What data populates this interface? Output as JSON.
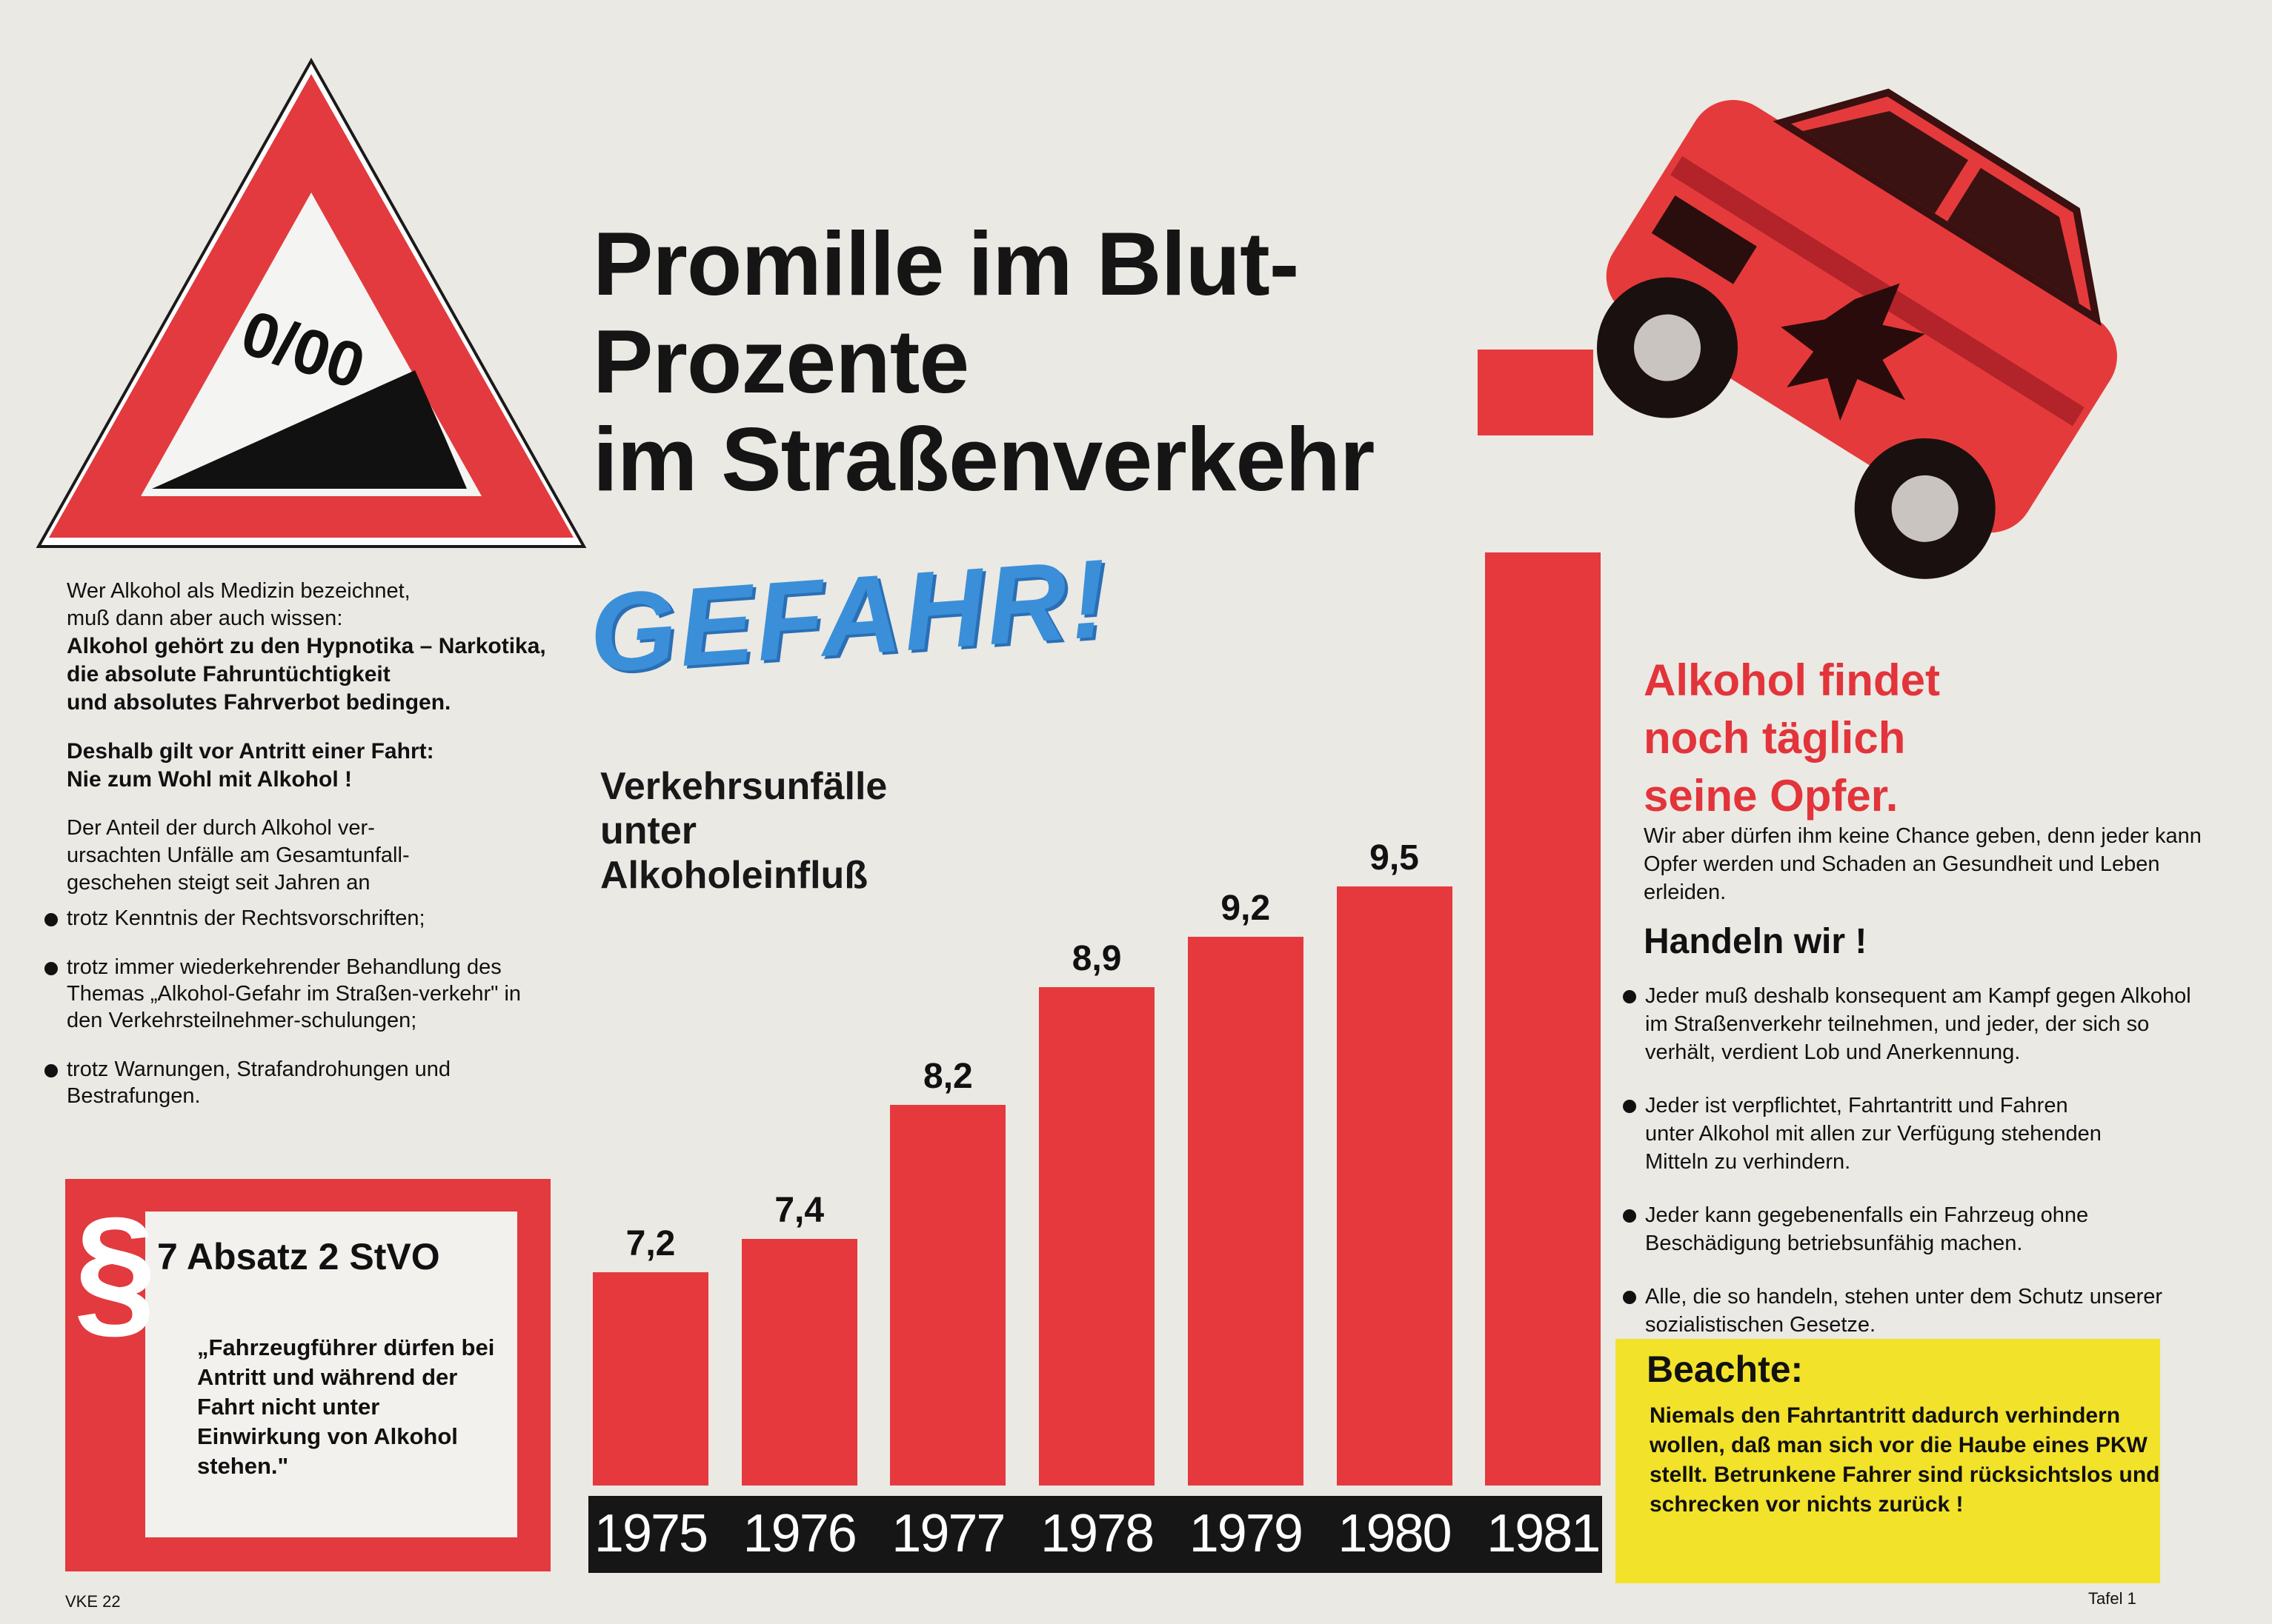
{
  "title_lines": [
    "Promille im Blut-",
    "Prozente",
    "im Straßenverkehr"
  ],
  "sign_symbol": "0/00",
  "gefahr": "GEFAHR!",
  "chart_data": {
    "type": "bar",
    "subtitle_lines": [
      "Verkehrsunfälle",
      "unter",
      "Alkoholeinfluß"
    ],
    "categories": [
      "1975",
      "1976",
      "1977",
      "1978",
      "1979",
      "1980",
      "1981"
    ],
    "values": [
      7.2,
      7.4,
      8.2,
      8.9,
      9.2,
      9.5,
      null
    ],
    "value_labels": [
      "7,2",
      "7,4",
      "8,2",
      "8,9",
      "9,2",
      "9,5",
      ""
    ],
    "grid": false,
    "legend": "none"
  },
  "left": {
    "intro": [
      "Wer Alkohol als Medizin bezeichnet,",
      "muß dann aber auch wissen:"
    ],
    "intro_bold": [
      "Alkohol gehört zu den Hypnotika – Narkotika,",
      "die absolute Fahruntüchtigkeit",
      "und absolutes Fahrverbot bedingen."
    ],
    "deshalb": [
      "Deshalb gilt vor Antritt einer Fahrt:",
      "Nie zum Wohl mit Alkohol !"
    ],
    "anteil": [
      "Der Anteil der durch Alkohol ver-",
      "ursachten Unfälle am Gesamtunfall-",
      "geschehen steigt seit Jahren an"
    ],
    "bullets": [
      "trotz Kenntnis der Rechtsvorschriften;",
      "trotz immer wiederkehrender Behandlung des Themas „Alkohol-Gefahr im Straßen-verkehr\" in den Verkehrsteilnehmer-schulungen;",
      "trotz Warnungen, Strafandrohungen und Bestrafungen."
    ]
  },
  "law": {
    "symbol": "§",
    "title": "7 Absatz 2 StVO",
    "quote": "„Fahrzeugführer dürfen bei Antritt und während der Fahrt nicht unter Einwirkung von Alkohol stehen.\""
  },
  "right": {
    "headline": [
      "Alkohol findet",
      "noch täglich",
      "seine Opfer."
    ],
    "text": "Wir aber dürfen ihm keine Chance geben, denn jeder kann Opfer werden und Schaden an Gesundheit und Leben erleiden.",
    "handeln": "Handeln wir !",
    "bullets": [
      "Jeder muß deshalb konsequent am Kampf gegen Alkohol im Straßenverkehr teilnehmen, und jeder, der sich so verhält, verdient Lob und Anerkennung.",
      "Jeder ist verpflichtet, Fahrtantritt und Fahren unter Alkohol mit allen zur Verfügung stehenden Mitteln zu verhindern.",
      "Jeder kann gegebenenfalls ein Fahrzeug ohne Beschädigung betriebsunfähig machen.",
      "Alle, die so handeln, stehen unter dem Schutz unserer sozialistischen Gesetze."
    ]
  },
  "note": {
    "title": "Beachte:",
    "text": "Niemals den Fahrtantritt dadurch verhindern wollen, daß man sich vor die Haube eines PKW stellt. Betrunkene Fahrer sind rücksichtslos und schrecken vor nichts zurück !"
  },
  "footer_left": "VKE 22",
  "footer_right": "Tafel   1",
  "colors": {
    "red": "#e5393e",
    "blue": "#3a8fd8",
    "yellow": "#f2e22a",
    "dark": "#161616"
  }
}
